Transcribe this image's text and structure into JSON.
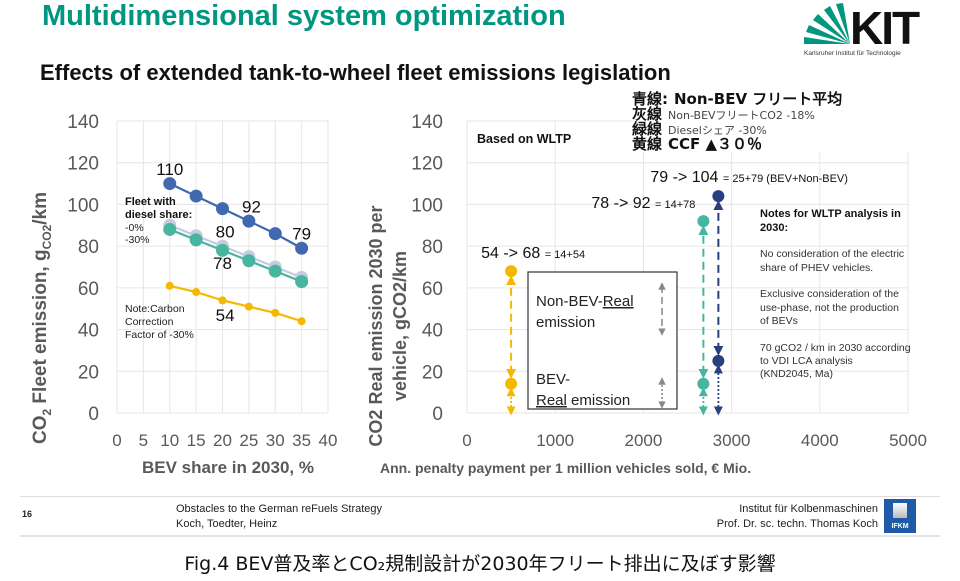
{
  "header": {
    "title": "Multidimensional system optimization",
    "subtitle": "Effects of extended tank-to-wheel fleet emissions legislation",
    "logo_text": "KIT",
    "logo_subtext": "Karlsruher Institut für Technologie"
  },
  "jp_legend": {
    "rows": [
      {
        "key": "青線:",
        "text": "Non-BEV フリート平均",
        "style": "big"
      },
      {
        "key": "灰線",
        "text": "Non-BEVフリートCO2 -18%",
        "style": "small"
      },
      {
        "key": "緑線",
        "text": "Dieselシェア -30%",
        "style": "small"
      },
      {
        "key": "黄線",
        "text": "CCF  ▲３０％",
        "style": "big"
      }
    ]
  },
  "colors": {
    "title_green": "#00967f",
    "blue": "#4169b0",
    "grey": "#c5cce0",
    "green": "#47b5a0",
    "yellow": "#f5b800",
    "dark_blue": "#2a3f7f",
    "axis_text": "#595959",
    "grid": "#e6e6e6"
  },
  "chart_data": [
    {
      "type": "line",
      "title": "",
      "xlabel": "BEV share in 2030, %",
      "ylabel": "CO2 Fleet emission, gCO2/km",
      "ylabel_parts": {
        "pre": "CO",
        "sub": "2",
        "mid": " Fleet emission, g",
        "sub2": "CO2",
        "post": "/km"
      },
      "xlim": [
        0,
        40
      ],
      "ylim": [
        0,
        140
      ],
      "xticks": [
        0,
        5,
        10,
        15,
        20,
        25,
        30,
        35,
        40
      ],
      "yticks": [
        0,
        20,
        40,
        60,
        80,
        100,
        120,
        140
      ],
      "grid": true,
      "x": [
        10,
        15,
        20,
        25,
        30,
        35
      ],
      "series": [
        {
          "name": "Non-BEV fleet average",
          "color": "#4169b0",
          "values": [
            110,
            104,
            98,
            92,
            86,
            79
          ],
          "marker": "large"
        },
        {
          "name": "Diesel share -0%",
          "color": "#c5cce0",
          "values": [
            90,
            85,
            80,
            75,
            70,
            65
          ],
          "marker": "large"
        },
        {
          "name": "Diesel share -30%",
          "color": "#47b5a0",
          "values": [
            88,
            83,
            78,
            73,
            68,
            63
          ],
          "marker": "large"
        },
        {
          "name": "Carbon Correction Factor -30%",
          "color": "#f5b800",
          "values": [
            61,
            58,
            54,
            51,
            48,
            44
          ],
          "marker": "small"
        }
      ],
      "data_labels": [
        {
          "text": "110",
          "x": 10,
          "y": 117
        },
        {
          "text": "92",
          "x": 25.5,
          "y": 99
        },
        {
          "text": "80",
          "x": 20.5,
          "y": 87
        },
        {
          "text": "79",
          "x": 35,
          "y": 86
        },
        {
          "text": "78",
          "x": 20,
          "y": 72
        },
        {
          "text": "54",
          "x": 20.5,
          "y": 47
        }
      ],
      "annotations": {
        "fleet_title": [
          "Fleet with",
          "diesel share:"
        ],
        "fleet_items": [
          "-0%",
          "-30%"
        ],
        "note": [
          "Note:Carbon",
          "Correction",
          "Factor of -30%"
        ]
      }
    },
    {
      "type": "scatter",
      "title": "",
      "xlabel": "Ann. penalty payment per 1 million vehicles sold, € Mio.",
      "ylabel_line1": "CO2 Real emission 2030 per",
      "ylabel_line2": "vehicle, gCO2/km",
      "xlim": [
        0,
        5000
      ],
      "ylim": [
        0,
        140
      ],
      "xticks": [
        0,
        1000,
        2000,
        3000,
        4000,
        5000
      ],
      "yticks": [
        0,
        20,
        40,
        60,
        80,
        100,
        120,
        140
      ],
      "grid": true,
      "series": [
        {
          "name": "CCF -30%",
          "color": "#f5b800",
          "x": 500,
          "non_bev": 54,
          "total": 68,
          "bev": 14,
          "label_main": "54 -> 68",
          "label_sum": "= 14+54"
        },
        {
          "name": "Diesel share -30%",
          "color": "#47b5a0",
          "x": 2680,
          "non_bev": 78,
          "total": 92,
          "bev": 14,
          "label_main": "78 -> 92",
          "label_sum": "= 14+78"
        },
        {
          "name": "Non-BEV fleet average",
          "color": "#2a3f7f",
          "x": 2850,
          "non_bev": 79,
          "total": 104,
          "bev": 25,
          "label_main": "79 -> 104",
          "label_sum": "= 25+79 (BEV+Non-BEV)"
        }
      ],
      "annotations": {
        "based_on": "Based on WLTP",
        "legend_box": {
          "non_bev_line1_a": "Non-BEV-",
          "non_bev_line1_b": "Real",
          "non_bev_line2": "emission",
          "bev_line1": "BEV-",
          "bev_line2_a": "Real",
          "bev_line2_b": " emission"
        },
        "notes_title": [
          "Notes for WLTP analysis in",
          "2030:"
        ],
        "notes": [
          [
            "No consideration of the electric",
            "share of PHEV vehicles."
          ],
          [
            "Exclusive consideration of the",
            "use-phase, not the production",
            "of BEVs"
          ],
          [
            "70 gCO2 / km in 2030 according",
            "to VDI LCA analysis",
            "(KND2045, Ma)"
          ]
        ]
      }
    }
  ],
  "footer": {
    "page_number": "16",
    "left_line1": "Obstacles to the German reFuels Strategy",
    "left_line2": "Koch, Toedter, Heinz",
    "right_line1": "Institut für Kolbenmaschinen",
    "right_line2": "Prof. Dr. sc. techn. Thomas Koch",
    "logo_text": "IFKM"
  },
  "caption": "Fig.4 BEV普及率とCO₂規制設計が2030年フリート排出に及ぼす影響"
}
